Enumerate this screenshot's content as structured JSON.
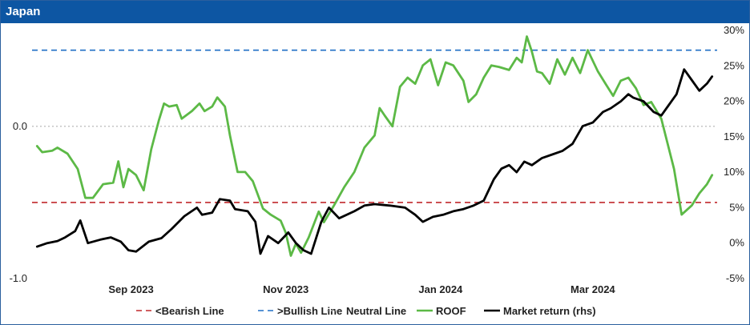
{
  "panel_title": "Japan",
  "colors": {
    "header": "#0d56a3",
    "bearish": "#c0282c",
    "bullish": "#1f6fc5",
    "neutral": "#b0b0b0",
    "roof": "#5cb946",
    "market": "#000000"
  },
  "chart_data": {
    "type": "line",
    "title": "Japan",
    "x_axis": {
      "type": "date",
      "range": [
        "2023-07-24",
        "2024-04-19"
      ],
      "tick_labels": [
        {
          "date": "2023-09-01",
          "label": "Sep 2023"
        },
        {
          "date": "2023-11-01",
          "label": "Nov 2023"
        },
        {
          "date": "2024-01-01",
          "label": "Jan 2024"
        },
        {
          "date": "2024-03-01",
          "label": "Mar 2024"
        }
      ]
    },
    "y_left": {
      "range": [
        -1.0,
        0.63
      ],
      "tick_labels": [
        {
          "value": 0.0,
          "label": "0.0"
        },
        {
          "value": -1.0,
          "label": "-1.0"
        }
      ]
    },
    "y_right": {
      "range": [
        -5,
        30
      ],
      "unit": "%",
      "tick_labels": [
        {
          "value": 30,
          "label": "30%"
        },
        {
          "value": 25,
          "label": "25%"
        },
        {
          "value": 20,
          "label": "20%"
        },
        {
          "value": 15,
          "label": "15%"
        },
        {
          "value": 10,
          "label": "10%"
        },
        {
          "value": 5,
          "label": "5%"
        },
        {
          "value": 0,
          "label": "0%"
        },
        {
          "value": -5,
          "label": "-5%"
        }
      ]
    },
    "reference_lines": [
      {
        "name": "<Bearish Line",
        "value": -0.5,
        "axis": "left",
        "style": "dashed",
        "color": "#c0282c"
      },
      {
        "name": ">Bullish Line",
        "value": 0.5,
        "axis": "left",
        "style": "dashed",
        "color": "#1f6fc5"
      },
      {
        "name": "Neutral Line",
        "value": 0.0,
        "axis": "left",
        "style": "dotted",
        "color": "#b0b0b0"
      }
    ],
    "series": [
      {
        "name": "ROOF",
        "axis": "left",
        "color": "#5cb946",
        "points": [
          [
            "2023-07-26",
            -0.13
          ],
          [
            "2023-07-28",
            -0.17
          ],
          [
            "2023-08-01",
            -0.16
          ],
          [
            "2023-08-03",
            -0.14
          ],
          [
            "2023-08-07",
            -0.18
          ],
          [
            "2023-08-11",
            -0.28
          ],
          [
            "2023-08-14",
            -0.47
          ],
          [
            "2023-08-17",
            -0.47
          ],
          [
            "2023-08-21",
            -0.38
          ],
          [
            "2023-08-25",
            -0.37
          ],
          [
            "2023-08-27",
            -0.23
          ],
          [
            "2023-08-29",
            -0.4
          ],
          [
            "2023-08-31",
            -0.28
          ],
          [
            "2023-09-03",
            -0.32
          ],
          [
            "2023-09-06",
            -0.42
          ],
          [
            "2023-09-09",
            -0.15
          ],
          [
            "2023-09-12",
            0.04
          ],
          [
            "2023-09-14",
            0.15
          ],
          [
            "2023-09-16",
            0.13
          ],
          [
            "2023-09-19",
            0.14
          ],
          [
            "2023-09-21",
            0.05
          ],
          [
            "2023-09-25",
            0.1
          ],
          [
            "2023-09-28",
            0.15
          ],
          [
            "2023-09-30",
            0.1
          ],
          [
            "2023-10-03",
            0.13
          ],
          [
            "2023-10-05",
            0.19
          ],
          [
            "2023-10-08",
            0.13
          ],
          [
            "2023-10-10",
            -0.06
          ],
          [
            "2023-10-13",
            -0.3
          ],
          [
            "2023-10-16",
            -0.3
          ],
          [
            "2023-10-19",
            -0.36
          ],
          [
            "2023-10-23",
            -0.54
          ],
          [
            "2023-10-26",
            -0.58
          ],
          [
            "2023-10-30",
            -0.62
          ],
          [
            "2023-11-01",
            -0.7
          ],
          [
            "2023-11-03",
            -0.85
          ],
          [
            "2023-11-05",
            -0.77
          ],
          [
            "2023-11-07",
            -0.83
          ],
          [
            "2023-11-10",
            -0.73
          ],
          [
            "2023-11-14",
            -0.56
          ],
          [
            "2023-11-16",
            -0.63
          ],
          [
            "2023-11-20",
            -0.52
          ],
          [
            "2023-11-24",
            -0.4
          ],
          [
            "2023-11-28",
            -0.3
          ],
          [
            "2023-12-02",
            -0.14
          ],
          [
            "2023-12-06",
            -0.06
          ],
          [
            "2023-12-08",
            0.12
          ],
          [
            "2023-12-10",
            0.07
          ],
          [
            "2023-12-13",
            0.0
          ],
          [
            "2023-12-16",
            0.26
          ],
          [
            "2023-12-19",
            0.32
          ],
          [
            "2023-12-22",
            0.28
          ],
          [
            "2023-12-25",
            0.4
          ],
          [
            "2023-12-28",
            0.44
          ],
          [
            "2023-12-31",
            0.27
          ],
          [
            "2024-01-03",
            0.42
          ],
          [
            "2024-01-06",
            0.4
          ],
          [
            "2024-01-10",
            0.3
          ],
          [
            "2024-01-12",
            0.16
          ],
          [
            "2024-01-15",
            0.21
          ],
          [
            "2024-01-18",
            0.32
          ],
          [
            "2024-01-21",
            0.4
          ],
          [
            "2024-01-24",
            0.39
          ],
          [
            "2024-01-28",
            0.37
          ],
          [
            "2024-01-31",
            0.45
          ],
          [
            "2024-02-02",
            0.42
          ],
          [
            "2024-02-04",
            0.59
          ],
          [
            "2024-02-06",
            0.49
          ],
          [
            "2024-02-08",
            0.36
          ],
          [
            "2024-02-10",
            0.35
          ],
          [
            "2024-02-13",
            0.28
          ],
          [
            "2024-02-16",
            0.44
          ],
          [
            "2024-02-19",
            0.34
          ],
          [
            "2024-02-22",
            0.45
          ],
          [
            "2024-02-25",
            0.35
          ],
          [
            "2024-02-28",
            0.5
          ],
          [
            "2024-03-03",
            0.36
          ],
          [
            "2024-03-06",
            0.28
          ],
          [
            "2024-03-09",
            0.2
          ],
          [
            "2024-03-12",
            0.3
          ],
          [
            "2024-03-15",
            0.32
          ],
          [
            "2024-03-18",
            0.25
          ],
          [
            "2024-03-21",
            0.14
          ],
          [
            "2024-03-24",
            0.16
          ],
          [
            "2024-03-28",
            0.05
          ],
          [
            "2024-04-02",
            -0.28
          ],
          [
            "2024-04-05",
            -0.58
          ],
          [
            "2024-04-09",
            -0.52
          ],
          [
            "2024-04-12",
            -0.44
          ],
          [
            "2024-04-15",
            -0.38
          ],
          [
            "2024-04-17",
            -0.32
          ]
        ]
      },
      {
        "name": "Market return (rhs)",
        "axis": "right",
        "color": "#000000",
        "points": [
          [
            "2023-07-26",
            -0.5
          ],
          [
            "2023-07-30",
            0.0
          ],
          [
            "2023-08-03",
            0.3
          ],
          [
            "2023-08-06",
            0.8
          ],
          [
            "2023-08-10",
            1.7
          ],
          [
            "2023-08-12",
            3.2
          ],
          [
            "2023-08-15",
            0.0
          ],
          [
            "2023-08-20",
            0.5
          ],
          [
            "2023-08-24",
            0.8
          ],
          [
            "2023-08-28",
            0.2
          ],
          [
            "2023-08-31",
            -1.0
          ],
          [
            "2023-09-03",
            -1.2
          ],
          [
            "2023-09-08",
            0.2
          ],
          [
            "2023-09-13",
            0.7
          ],
          [
            "2023-09-17",
            2.0
          ],
          [
            "2023-09-22",
            3.8
          ],
          [
            "2023-09-27",
            5.0
          ],
          [
            "2023-09-29",
            4.0
          ],
          [
            "2023-10-03",
            4.3
          ],
          [
            "2023-10-06",
            6.2
          ],
          [
            "2023-10-10",
            6.0
          ],
          [
            "2023-10-12",
            4.8
          ],
          [
            "2023-10-17",
            4.5
          ],
          [
            "2023-10-20",
            3.0
          ],
          [
            "2023-10-22",
            -1.5
          ],
          [
            "2023-10-25",
            1.0
          ],
          [
            "2023-10-29",
            0.0
          ],
          [
            "2023-11-02",
            1.5
          ],
          [
            "2023-11-05",
            0.0
          ],
          [
            "2023-11-08",
            -1.0
          ],
          [
            "2023-11-11",
            -1.5
          ],
          [
            "2023-11-15",
            3.0
          ],
          [
            "2023-11-18",
            5.0
          ],
          [
            "2023-11-22",
            3.5
          ],
          [
            "2023-11-28",
            4.5
          ],
          [
            "2023-12-02",
            5.3
          ],
          [
            "2023-12-06",
            5.5
          ],
          [
            "2023-12-12",
            5.3
          ],
          [
            "2023-12-18",
            5.0
          ],
          [
            "2023-12-22",
            4.0
          ],
          [
            "2023-12-25",
            3.0
          ],
          [
            "2023-12-29",
            3.7
          ],
          [
            "2024-01-02",
            4.0
          ],
          [
            "2024-01-06",
            4.5
          ],
          [
            "2024-01-10",
            4.8
          ],
          [
            "2024-01-14",
            5.3
          ],
          [
            "2024-01-18",
            6.0
          ],
          [
            "2024-01-22",
            9.0
          ],
          [
            "2024-01-25",
            10.5
          ],
          [
            "2024-01-28",
            11.0
          ],
          [
            "2024-01-31",
            10.0
          ],
          [
            "2024-02-03",
            11.5
          ],
          [
            "2024-02-06",
            11.0
          ],
          [
            "2024-02-10",
            12.0
          ],
          [
            "2024-02-14",
            12.5
          ],
          [
            "2024-02-18",
            13.0
          ],
          [
            "2024-02-22",
            14.0
          ],
          [
            "2024-02-26",
            16.5
          ],
          [
            "2024-03-01",
            17.0
          ],
          [
            "2024-03-05",
            18.5
          ],
          [
            "2024-03-08",
            19.0
          ],
          [
            "2024-03-12",
            20.0
          ],
          [
            "2024-03-15",
            21.0
          ],
          [
            "2024-03-17",
            20.5
          ],
          [
            "2024-03-21",
            20.0
          ],
          [
            "2024-03-25",
            18.5
          ],
          [
            "2024-03-28",
            18.0
          ],
          [
            "2024-03-31",
            19.5
          ],
          [
            "2024-04-03",
            21.0
          ],
          [
            "2024-04-06",
            24.5
          ],
          [
            "2024-04-09",
            23.0
          ],
          [
            "2024-04-12",
            21.5
          ],
          [
            "2024-04-15",
            22.5
          ],
          [
            "2024-04-17",
            23.5
          ]
        ]
      }
    ],
    "legend": {
      "position": "bottom",
      "entries": [
        {
          "label": "<Bearish Line",
          "color": "#c0282c",
          "style": "dashed"
        },
        {
          "label": ">Bullish Line",
          "color": "#1f6fc5",
          "style": "dashed"
        },
        {
          "label": "Neutral Line",
          "color": "#b0b0b0",
          "style": "dotted"
        },
        {
          "label": "ROOF",
          "color": "#5cb946",
          "style": "solid"
        },
        {
          "label": "Market return (rhs)",
          "color": "#000000",
          "style": "solid"
        }
      ]
    }
  }
}
